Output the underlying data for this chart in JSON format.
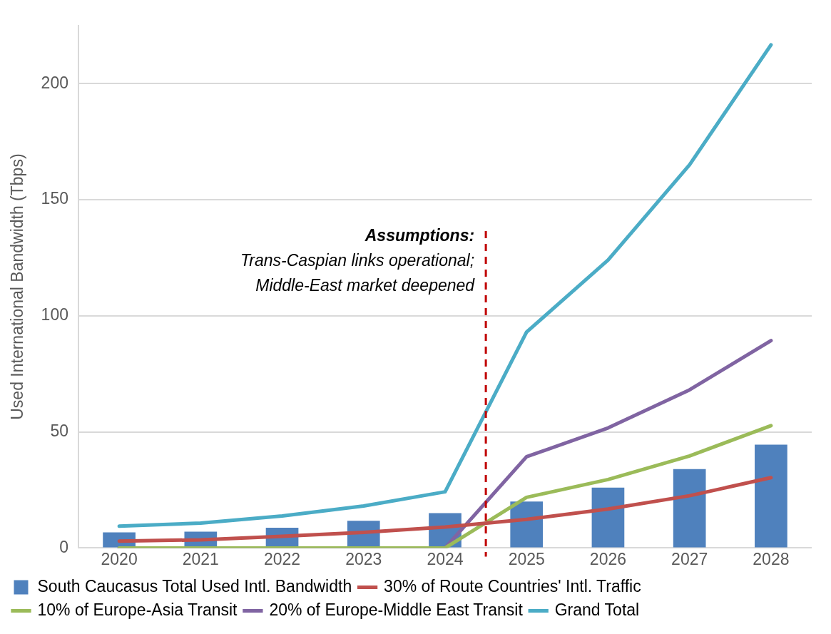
{
  "chart_data": {
    "type": "line",
    "ylabel": "Used International Bandwidth (Tbps)",
    "x": [
      2020,
      2021,
      2022,
      2023,
      2024,
      2025,
      2026,
      2027,
      2028
    ],
    "xlim": [
      2019.5,
      2028.5
    ],
    "xticks": [
      2020,
      2021,
      2022,
      2023,
      2024,
      2025,
      2026,
      2027,
      2028
    ],
    "ylim": [
      0,
      225
    ],
    "yticks": [
      0,
      50,
      100,
      150,
      200
    ],
    "grid": "y",
    "legend": "bottom",
    "line_style": "solid",
    "marker": "none",
    "series": [
      {
        "name": "South Caucasus Total Used Intl. Bandwidth",
        "type": "bar",
        "color": "#4f81bd",
        "values": [
          6.7,
          7,
          8.7,
          11.7,
          15,
          20,
          26,
          34,
          44.5
        ]
      },
      {
        "name": "30% of Route Countries' Intl. Traffic",
        "color": "#c0504d",
        "values": [
          3,
          3.5,
          5,
          6.7,
          9,
          12.3,
          16.8,
          22.5,
          30.3
        ]
      },
      {
        "name": "10% of Europe-Asia Transit",
        "color": "#9bbb59",
        "values": [
          0,
          0,
          0,
          0,
          0,
          21.8,
          29.5,
          39.6,
          52.7
        ]
      },
      {
        "name": "20% of Europe-Middle East Transit",
        "color": "#8064a2",
        "values": [
          0,
          0,
          0,
          0,
          0,
          39.3,
          51.7,
          68.1,
          89.3
        ]
      },
      {
        "name": "Grand Total",
        "color": "#4bacc6",
        "values": [
          9.4,
          10.7,
          13.8,
          18.1,
          24.2,
          93,
          124,
          165,
          216.7
        ]
      }
    ],
    "ref_lines": [
      {
        "axis": "x",
        "value": 2024.5,
        "color": "#c00000",
        "line_style": "dashed"
      }
    ],
    "annotations": [
      {
        "text": "Assumptions:",
        "x": 2024.5,
        "y": 134
      },
      "Trans-Caspian links operational;",
      "Middle-East market deepened"
    ]
  }
}
